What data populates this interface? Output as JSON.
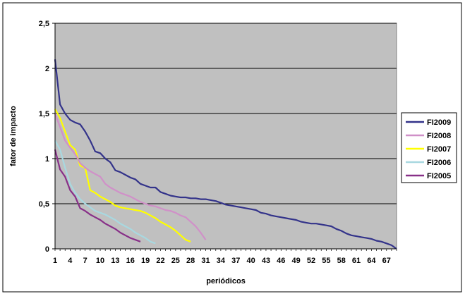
{
  "chart_data": {
    "type": "line",
    "xlabel": "periódicos",
    "ylabel": "fator de impacto",
    "ylim": [
      0,
      2.5
    ],
    "xlim": [
      1,
      69
    ],
    "yticks": [
      "0",
      "0,5",
      "1",
      "1,5",
      "2",
      "2,5"
    ],
    "yticks_values": [
      0,
      0.5,
      1,
      1.5,
      2,
      2.5
    ],
    "xticks": [
      "1",
      "4",
      "7",
      "10",
      "13",
      "16",
      "19",
      "22",
      "25",
      "28",
      "31",
      "34",
      "37",
      "40",
      "43",
      "46",
      "49",
      "52",
      "55",
      "58",
      "61",
      "64",
      "67"
    ],
    "xticks_values": [
      1,
      4,
      7,
      10,
      13,
      16,
      19,
      22,
      25,
      28,
      31,
      34,
      37,
      40,
      43,
      46,
      49,
      52,
      55,
      58,
      61,
      64,
      67
    ],
    "grid": "horizontal",
    "legend_position": "right",
    "plot_background": "#c0c0c0",
    "series": [
      {
        "name": "FI2009",
        "color": "#33338a",
        "values": [
          2.1,
          1.6,
          1.5,
          1.43,
          1.4,
          1.38,
          1.3,
          1.2,
          1.08,
          1.06,
          1.0,
          0.96,
          0.87,
          0.85,
          0.82,
          0.79,
          0.77,
          0.72,
          0.7,
          0.68,
          0.68,
          0.63,
          0.61,
          0.59,
          0.58,
          0.57,
          0.57,
          0.56,
          0.56,
          0.55,
          0.55,
          0.54,
          0.53,
          0.51,
          0.49,
          0.48,
          0.47,
          0.46,
          0.45,
          0.44,
          0.43,
          0.4,
          0.39,
          0.37,
          0.36,
          0.35,
          0.34,
          0.33,
          0.32,
          0.3,
          0.29,
          0.28,
          0.28,
          0.27,
          0.26,
          0.25,
          0.22,
          0.2,
          0.17,
          0.15,
          0.14,
          0.13,
          0.12,
          0.11,
          0.09,
          0.08,
          0.06,
          0.04,
          0.0
        ]
      },
      {
        "name": "FI2008",
        "color": "#d090c8",
        "values": [
          1.5,
          1.35,
          1.2,
          1.12,
          1.05,
          0.95,
          0.9,
          0.86,
          0.83,
          0.8,
          0.72,
          0.68,
          0.65,
          0.62,
          0.6,
          0.58,
          0.55,
          0.52,
          0.5,
          0.48,
          0.47,
          0.45,
          0.43,
          0.42,
          0.4,
          0.37,
          0.35,
          0.3,
          0.25,
          0.18,
          0.1
        ]
      },
      {
        "name": "FI2007",
        "color": "#ffff00",
        "values": [
          1.55,
          1.45,
          1.3,
          1.15,
          1.1,
          0.92,
          0.9,
          0.65,
          0.62,
          0.58,
          0.55,
          0.52,
          0.48,
          0.46,
          0.45,
          0.44,
          0.43,
          0.42,
          0.4,
          0.37,
          0.34,
          0.3,
          0.27,
          0.24,
          0.2,
          0.15,
          0.1,
          0.08
        ]
      },
      {
        "name": "FI2006",
        "color": "#a8d8e0",
        "values": [
          1.2,
          1.1,
          0.9,
          0.72,
          0.62,
          0.55,
          0.5,
          0.46,
          0.42,
          0.4,
          0.38,
          0.35,
          0.32,
          0.28,
          0.25,
          0.22,
          0.18,
          0.15,
          0.12,
          0.08,
          0.06
        ]
      },
      {
        "name": "FI2005",
        "color": "#883088",
        "values": [
          1.1,
          0.88,
          0.8,
          0.65,
          0.58,
          0.45,
          0.42,
          0.38,
          0.35,
          0.32,
          0.28,
          0.25,
          0.22,
          0.18,
          0.15,
          0.12,
          0.1,
          0.08
        ]
      }
    ]
  }
}
